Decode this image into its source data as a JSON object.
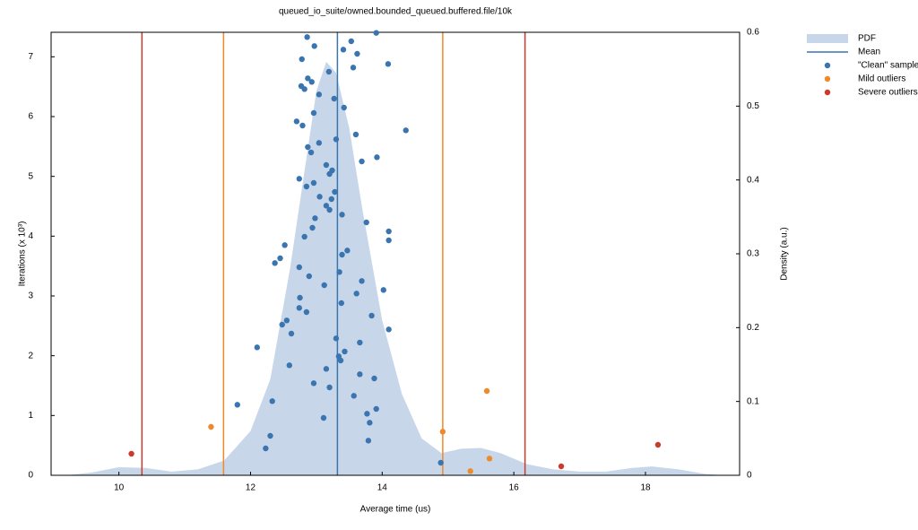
{
  "chart_data": {
    "type": "scatter",
    "title": "queued_io_suite/owned.bounded_queued.buffered.file/10k",
    "xlabel": "Average time (us)",
    "ylabel": "Iterations (x 10³)",
    "y2label": "Density (a.u.)",
    "xlim": [
      8.97,
      19.43
    ],
    "xticks": [
      10,
      12,
      14,
      16,
      18
    ],
    "ylim": [
      0,
      7.41
    ],
    "yticks": [
      0,
      1,
      2,
      3,
      4,
      5,
      6,
      7
    ],
    "y2lim": [
      0,
      0.6
    ],
    "y2ticks": [
      0,
      0.1,
      0.2,
      0.3,
      0.4,
      0.5,
      0.6
    ],
    "legend": "top-right-outside",
    "pdf": {
      "name": "PDF",
      "color": "#c7d7e9",
      "axis": "y2",
      "x": [
        9.2,
        9.6,
        10.0,
        10.4,
        10.8,
        11.2,
        11.6,
        12.0,
        12.3,
        12.6,
        12.8,
        13.0,
        13.15,
        13.3,
        13.5,
        13.7,
        14.0,
        14.3,
        14.6,
        14.9,
        15.2,
        15.5,
        15.8,
        16.2,
        16.6,
        17.0,
        17.4,
        17.8,
        18.1,
        18.5,
        18.9,
        19.2
      ],
      "values": [
        0,
        0.004,
        0.011,
        0.01,
        0.005,
        0.008,
        0.02,
        0.06,
        0.13,
        0.28,
        0.4,
        0.52,
        0.56,
        0.545,
        0.47,
        0.36,
        0.21,
        0.11,
        0.05,
        0.03,
        0.036,
        0.037,
        0.03,
        0.015,
        0.008,
        0.005,
        0.005,
        0.01,
        0.012,
        0.008,
        0.002,
        0
      ]
    },
    "mean": {
      "name": "Mean",
      "color": "#3a75b0",
      "value": 13.32
    },
    "fences": [
      {
        "color": "#f0892a",
        "values": [
          11.59,
          14.92
        ]
      },
      {
        "color": "#cc3a2b",
        "values": [
          10.35,
          16.17
        ]
      }
    ],
    "series": [
      {
        "name": "\"Clean\" sample",
        "color": "#3a75b0",
        "x": [
          12.86,
          12.97,
          13.53,
          13.91,
          13.41,
          13.62,
          12.78,
          14.09,
          13.56,
          13.19,
          12.87,
          12.93,
          12.77,
          12.82,
          13.04,
          13.27,
          13.42,
          14.36,
          12.96,
          12.7,
          12.79,
          13.3,
          13.6,
          12.87,
          12.92,
          13.04,
          13.92,
          13.69,
          13.15,
          13.24,
          12.74,
          12.85,
          13.2,
          12.96,
          13.05,
          13.15,
          13.23,
          13.28,
          13.2,
          13.39,
          12.98,
          13.76,
          12.94,
          14.1,
          12.82,
          14.1,
          12.52,
          13.47,
          13.39,
          12.45,
          12.37,
          12.74,
          13.35,
          12.89,
          13.69,
          14.02,
          13.12,
          13.61,
          12.75,
          13.38,
          12.74,
          12.85,
          13.84,
          12.55,
          12.48,
          12.62,
          14.1,
          13.3,
          13.66,
          12.1,
          13.43,
          13.34,
          13.37,
          13.15,
          12.59,
          13.66,
          13.88,
          12.96,
          13.2,
          13.57,
          12.33,
          11.8,
          13.91,
          13.77,
          13.11,
          13.81,
          12.3,
          13.79,
          12.23,
          14.89
        ],
        "values": [
          7.33,
          7.18,
          7.26,
          7.4,
          7.12,
          7.05,
          6.96,
          6.88,
          6.82,
          6.75,
          6.64,
          6.58,
          6.51,
          6.46,
          6.37,
          6.3,
          6.15,
          5.77,
          6.06,
          5.92,
          5.85,
          5.62,
          5.7,
          5.49,
          5.4,
          5.56,
          5.32,
          5.25,
          5.19,
          5.1,
          4.96,
          4.83,
          5.04,
          4.89,
          4.66,
          4.51,
          4.62,
          4.74,
          4.44,
          4.36,
          4.3,
          4.23,
          4.14,
          4.08,
          3.99,
          3.93,
          3.85,
          3.76,
          3.69,
          3.63,
          3.55,
          3.48,
          3.4,
          3.33,
          3.25,
          3.1,
          3.18,
          3.04,
          2.97,
          2.88,
          2.8,
          2.73,
          2.67,
          2.59,
          2.52,
          2.37,
          2.44,
          2.29,
          2.22,
          2.14,
          2.07,
          1.99,
          1.92,
          1.78,
          1.84,
          1.69,
          1.62,
          1.54,
          1.47,
          1.33,
          1.24,
          1.18,
          1.11,
          1.03,
          0.96,
          0.88,
          0.66,
          0.58,
          0.45,
          0.21
        ]
      },
      {
        "name": "Mild outliers",
        "color": "#f0892a",
        "x": [
          11.4,
          14.92,
          15.59,
          15.63,
          15.34
        ],
        "values": [
          0.81,
          0.73,
          1.41,
          0.28,
          0.07
        ]
      },
      {
        "name": "Severe outliers",
        "color": "#cc3a2b",
        "x": [
          10.19,
          16.72,
          18.19
        ],
        "values": [
          0.36,
          0.15,
          0.51
        ]
      }
    ]
  }
}
